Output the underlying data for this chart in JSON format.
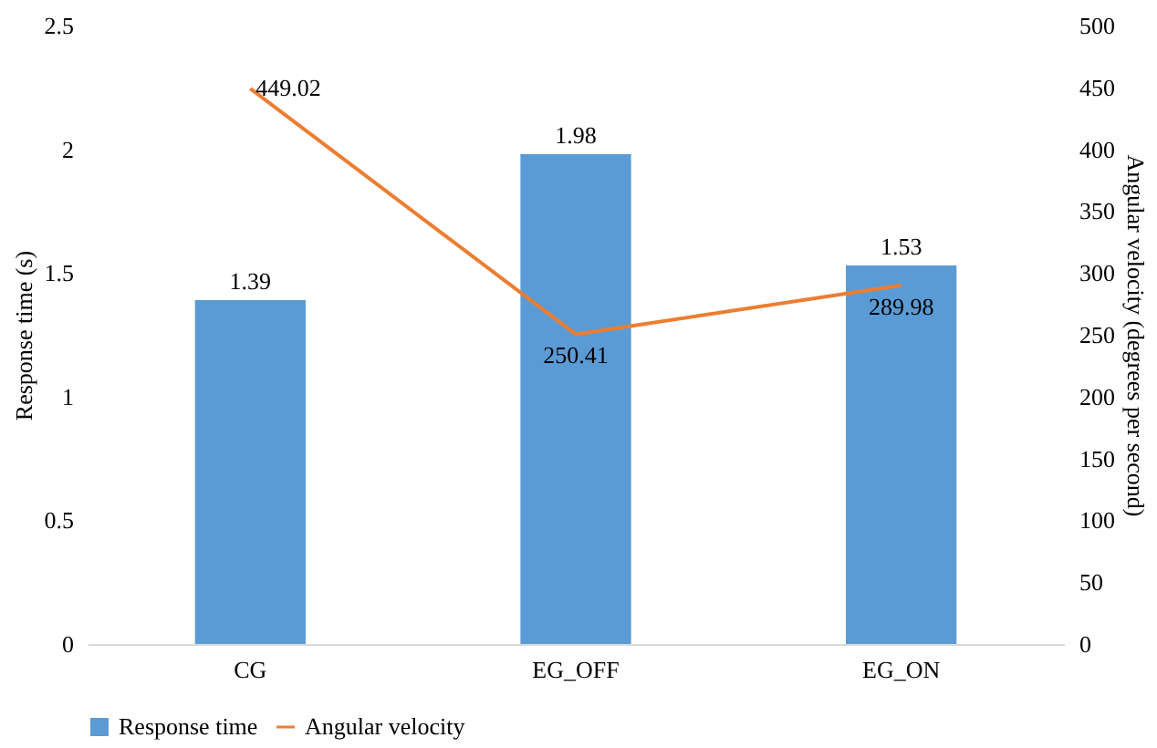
{
  "chart_data": {
    "type": "bar",
    "categories": [
      "CG",
      "EG_OFF",
      "EG_ON"
    ],
    "ylabel": "Response time (s)",
    "y2label": "Angular velocity (degrees per second)",
    "ylim": [
      0,
      2.5
    ],
    "yticks": [
      0,
      0.5,
      1,
      1.5,
      2,
      2.5
    ],
    "y2lim": [
      0,
      500
    ],
    "y2ticks": [
      0,
      50,
      100,
      150,
      200,
      250,
      300,
      350,
      400,
      450,
      500
    ],
    "series": [
      {
        "name": "Response time",
        "color": "#5b9bd5",
        "values": [
          1.39,
          1.98,
          1.53
        ]
      },
      {
        "name": "Angular velocity",
        "type": "line",
        "axis": "y2",
        "color": "#ed7d31",
        "values": [
          449.02,
          250.41,
          289.98
        ]
      }
    ],
    "data_labels": true,
    "grid": false,
    "legend": "bottom",
    "marker": "none"
  }
}
